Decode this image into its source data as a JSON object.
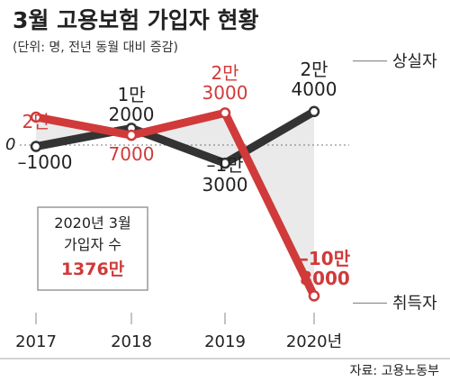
{
  "title": "3월 고용보험 가입자 현황",
  "subtitle": "(단위: 명, 전년 동월 대비 증감)",
  "source": "자료: 고용노동부",
  "colors": {
    "emp": "#333333",
    "unemp": "#d03a3a",
    "shade": "#e6e6e6",
    "axis": "#888888"
  },
  "callout": {
    "line1": "2020년 3월",
    "line2": "가입자 수",
    "value": "1376만"
  },
  "chart_data": {
    "type": "line",
    "x": [
      "2017",
      "2018",
      "2019",
      "2020"
    ],
    "tick_labels": [
      "2017",
      "2018",
      "2019",
      "2020년"
    ],
    "zero_label": "0",
    "ylim": [
      -110000,
      30000
    ],
    "series": [
      {
        "name": "상실자",
        "color": "#333333",
        "values": [
          -1000,
          12000,
          -13000,
          24000
        ],
        "labels": [
          [
            "–1000"
          ],
          [
            "1만",
            "2000"
          ],
          [
            "–1만",
            "3000"
          ],
          [
            "2만",
            "4000"
          ]
        ]
      },
      {
        "name": "취득자",
        "color": "#d03a3a",
        "values": [
          20000,
          7000,
          23000,
          -108000
        ],
        "labels": [
          [
            "2만"
          ],
          [
            "7000"
          ],
          [
            "2만",
            "3000"
          ],
          [
            "–10만",
            "8000"
          ]
        ]
      }
    ]
  }
}
